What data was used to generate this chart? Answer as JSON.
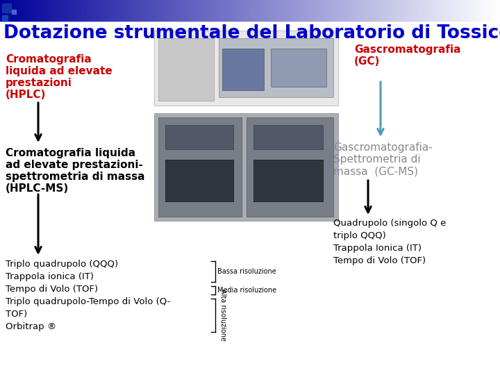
{
  "title": "Dotazione strumentale del Laboratorio di Tossicologia",
  "title_color": "#0000cc",
  "title_fontsize": 19,
  "bg_color": "#ffffff",
  "left_label1_lines": [
    "Cromatografia",
    "liquida ad elevate",
    "prestazioni",
    "(HPLC)"
  ],
  "left_label1_color": "#cc0000",
  "left_label2_lines": [
    "Cromatografia liquida",
    "ad elevate prestazioni-",
    "spettrometria di massa",
    "(HPLC-MS)"
  ],
  "left_label2_color": "#000000",
  "left_label3_lines": [
    "Triplo quadrupolo (QQQ)",
    "Trappola ionica (IT)",
    "Tempo di Volo (TOF)",
    "Triplo quadrupolo-Tempo di Volo (Q-",
    "TOF)",
    "Orbitrap ®"
  ],
  "left_label3_color": "#000000",
  "right_label1_lines": [
    "Gascromatografia",
    "(GC)"
  ],
  "right_label1_color": "#cc0000",
  "right_label2_lines": [
    "Gascromatografia-",
    "Spettrometria di",
    "massa  (GC-MS)"
  ],
  "right_label2_color": "#888888",
  "right_label3_lines": [
    "Quadrupolo (singolo Q e",
    "triplo QQQ)",
    "Trappola Ionica (IT)",
    "Tempo di Volo (TOF)"
  ],
  "right_label3_color": "#000000",
  "bassa_risoluzione": "Bassa risoluzione",
  "media_risoluzione": "Media risoluzione",
  "alta_risoluzione": "Alta risoluzione",
  "arrow_black": "#000000",
  "arrow_blue": "#5599bb"
}
